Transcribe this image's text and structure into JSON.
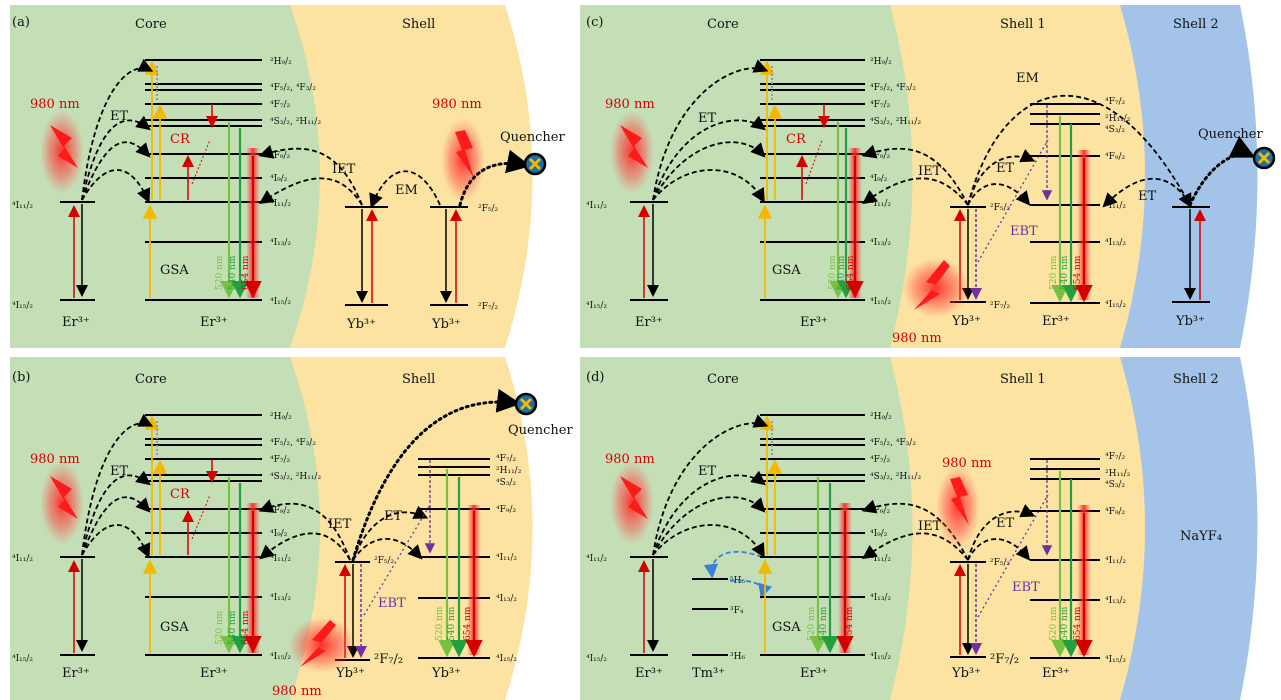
{
  "colors": {
    "core": "#c4dfb6",
    "shell": "#fde3a2",
    "shell2": "#a3c4e8",
    "red": "#d40000",
    "green": "#22a040",
    "lgreen": "#77c040",
    "yellow": "#f5b800",
    "purple": "#7030a0",
    "blue": "#3a7fd8"
  },
  "panels": [
    {
      "id": "a",
      "tag": "(a)",
      "regions": [
        "Core",
        "Shell"
      ],
      "levels_er": [
        "²H₉/₂",
        "⁴F₅/₂, ⁴F₃/₂",
        "⁴F₇/₂",
        "⁴S₃/₂, ²H₁₁/₂",
        "⁴F₉/₂",
        "⁴I₉/₂",
        "⁴I₁₁/₂",
        "⁴I₁₃/₂",
        "⁴I₁₅/₂"
      ],
      "labels": {
        "pump1": "980 nm",
        "pump2": "980 nm",
        "et": "ET",
        "cr": "CR",
        "iet": "IET",
        "em": "EM",
        "gsa": "GSA",
        "quencher": "Quencher",
        "i11": "⁴I₁₁/₂",
        "i15": "⁴I₁₅/₂",
        "f52": "²F₅/₂",
        "f72": "²F₇/₂"
      },
      "ions": [
        "Er³⁺",
        "Er³⁺",
        "Yb³⁺",
        "Yb³⁺"
      ],
      "emissions": [
        "520 nm",
        "540 nm",
        "654 nm"
      ]
    },
    {
      "id": "b",
      "tag": "(b)",
      "regions": [
        "Core",
        "Shell"
      ],
      "levels_er": [
        "²H₉/₂",
        "⁴F₅/₂, ⁴F₃/₂",
        "⁴F₇/₂",
        "⁴S₃/₂, ²H₁₁/₂",
        "⁴F₉/₂",
        "⁴I₉/₂",
        "⁴I₁₁/₂",
        "⁴I₁₃/₂",
        "⁴I₁₅/₂"
      ],
      "shell_levels": [
        "⁴F₇/₂",
        "²H₁₁/₂",
        "⁴S₃/₂",
        "⁴F₉/₂",
        "⁴I₁₁/₂",
        "⁴I₁₃/₂",
        "⁴I₁₅/₂"
      ],
      "labels": {
        "pump1": "980 nm",
        "pump2": "980 nm",
        "et": "ET",
        "cr": "CR",
        "iet": "IET",
        "et2": "ET",
        "ebt": "EBT",
        "gsa": "GSA",
        "quencher": "Quencher",
        "i11": "⁴I₁₁/₂",
        "i15": "⁴I₁₅/₂",
        "f52": "²F₅/₂",
        "f72": "²F₇/₂"
      },
      "ions": [
        "Er³⁺",
        "Er³⁺",
        "Yb³⁺",
        "Yb³⁺"
      ],
      "emissions": [
        "520 nm",
        "540 nm",
        "654 nm"
      ]
    },
    {
      "id": "c",
      "tag": "(c)",
      "regions": [
        "Core",
        "Shell 1",
        "Shell 2"
      ],
      "levels_er": [
        "²H₉/₂",
        "⁴F₅/₂, ⁴F₃/₂",
        "⁴F₇/₂",
        "⁴S₃/₂, ²H₁₁/₂",
        "⁴F₉/₂",
        "⁴I₉/₂",
        "⁴I₁₁/₂",
        "⁴I₁₃/₂",
        "⁴I₁₅/₂"
      ],
      "shell_levels": [
        "⁴F₇/₂",
        "²H₁₁/₂",
        "⁴S₃/₂",
        "⁴F₉/₂",
        "⁴I₁₁/₂",
        "⁴I₁₃/₂",
        "⁴I₁₅/₂"
      ],
      "labels": {
        "pump1": "980 nm",
        "pump2": "980 nm",
        "et": "ET",
        "cr": "CR",
        "iet": "IET",
        "et2": "ET",
        "et3": "ET",
        "em": "EM",
        "ebt": "EBT",
        "gsa": "GSA",
        "quencher": "Quencher",
        "i11": "⁴I₁₁/₂",
        "i15": "⁴I₁₅/₂",
        "f52": "²F₅/₂",
        "f72": "²F₇/₂"
      },
      "ions": [
        "Er³⁺",
        "Er³⁺",
        "Yb³⁺",
        "Er³⁺",
        "Yb³⁺"
      ],
      "emissions": [
        "520 nm",
        "540 nm",
        "654 nm"
      ]
    },
    {
      "id": "d",
      "tag": "(d)",
      "regions": [
        "Core",
        "Shell 1",
        "Shell 2"
      ],
      "levels_er": [
        "²H₉/₂",
        "⁴F₅/₂, ⁴F₃/₂",
        "⁴F₇/₂",
        "⁴S₃/₂, ²H₁₁/₂",
        "⁴F₉/₂",
        "⁴I₉/₂",
        "⁴I₁₁/₂",
        "⁴I₁₃/₂",
        "⁴I₁₅/₂"
      ],
      "shell_levels": [
        "⁴F₇/₂",
        "²H₁₁/₂",
        "⁴S₃/₂",
        "⁴F₉/₂",
        "⁴I₁₁/₂",
        "⁴I₁₃/₂",
        "⁴I₁₅/₂"
      ],
      "tm_levels": [
        "⁵H₅",
        "³F₄",
        "³H₆"
      ],
      "labels": {
        "pump1": "980 nm",
        "pump2": "980 nm",
        "et": "ET",
        "iet": "IET",
        "et2": "ET",
        "ebt": "EBT",
        "gsa": "GSA",
        "nayf": "NaYF₄",
        "i11": "⁴I₁₁/₂",
        "i15": "⁴I₁₅/₂",
        "f52": "²F₅/₂",
        "f72": "²F₇/₂"
      },
      "ions": [
        "Er³⁺",
        "Tm³⁺",
        "Er³⁺",
        "Yb³⁺",
        "Er³⁺"
      ],
      "emissions": [
        "520 nm",
        "540 nm",
        "654 nm"
      ]
    }
  ]
}
